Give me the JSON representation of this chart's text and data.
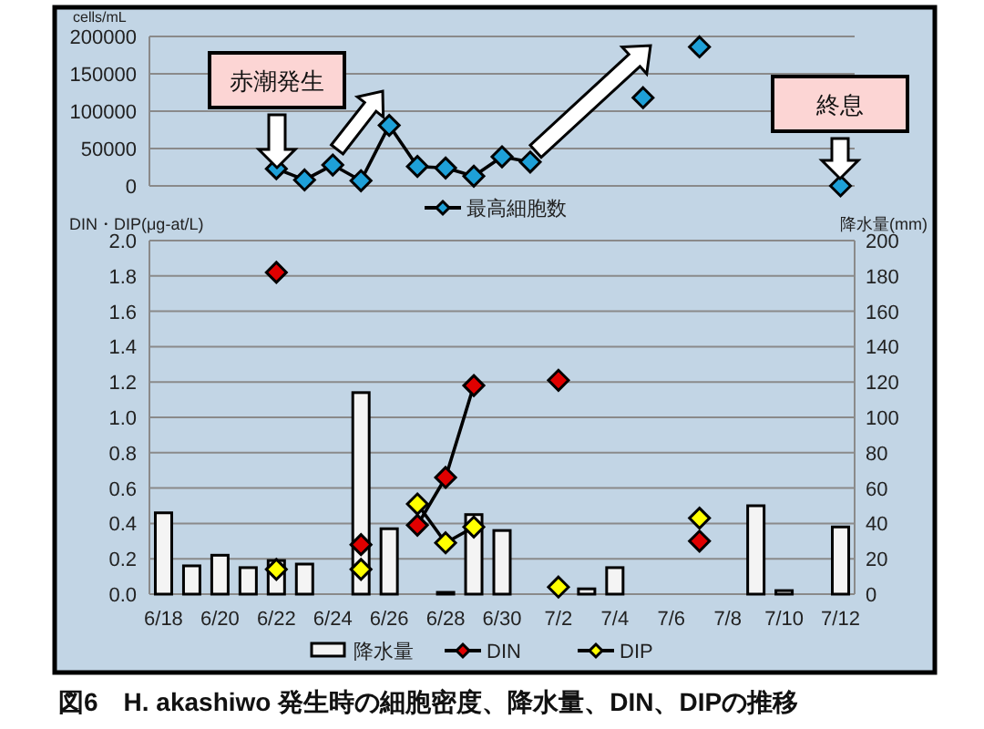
{
  "chart_data": [
    {
      "type": "line",
      "ylabel": "cells/mL",
      "categories": [
        null,
        null,
        null,
        null,
        null,
        null,
        null,
        null,
        null,
        null,
        null,
        null,
        null,
        null,
        null,
        null,
        null,
        null,
        null,
        null,
        null,
        null,
        null,
        null,
        null
      ],
      "tick_labels": "y",
      "ylim": [
        0,
        200000
      ],
      "yticks": [
        0,
        50000,
        100000,
        150000,
        200000
      ],
      "grid": "y",
      "legend": "bottom",
      "marker": "diamond",
      "series": [
        {
          "name": "最高細胞数",
          "color": "#1ea0d8",
          "values": [
            null,
            null,
            null,
            null,
            23000,
            8000,
            28000,
            7000,
            81000,
            26000,
            24000,
            13000,
            39000,
            32000,
            null,
            null,
            null,
            118000,
            null,
            186000,
            null,
            null,
            null,
            null,
            0
          ]
        }
      ],
      "annotations": [
        "赤潮発生",
        "終息"
      ]
    },
    {
      "type": "line",
      "ylabel": "DIN・DIP(μg-at/L)",
      "y2label": "降水量(mm)",
      "categories": [
        "6/18",
        null,
        "6/20",
        null,
        "6/22",
        null,
        "6/24",
        null,
        "6/26",
        null,
        "6/28",
        null,
        "6/30",
        null,
        "7/2",
        null,
        "7/4",
        null,
        "7/6",
        null,
        "7/8",
        null,
        "7/10",
        null,
        "7/12"
      ],
      "ylim": [
        0,
        2
      ],
      "yticks": [
        {
          "value": 0,
          "label": "0.0"
        },
        0.2,
        0.4,
        0.6,
        0.8,
        {
          "value": 1,
          "label": "1.0"
        },
        1.2,
        1.4,
        1.6,
        1.8,
        {
          "value": 2,
          "label": "2.0"
        }
      ],
      "y2lim": [
        0,
        200
      ],
      "y2ticks": [
        0,
        20,
        40,
        60,
        80,
        100,
        120,
        140,
        160,
        180,
        200
      ],
      "grid": "y",
      "legend": "bottom",
      "marker": "diamond",
      "series": [
        {
          "name": "降水量",
          "type": "bar",
          "axis": "y2",
          "color": "#f4f4f4",
          "values": [
            46,
            16,
            22,
            15,
            19,
            17,
            null,
            114,
            37,
            null,
            1,
            45,
            36,
            null,
            null,
            3,
            15,
            null,
            null,
            null,
            null,
            50,
            2,
            null,
            38
          ]
        },
        {
          "name": "DIN",
          "color": "#e00000",
          "values": [
            null,
            null,
            null,
            null,
            1.82,
            null,
            null,
            0.28,
            null,
            0.39,
            0.66,
            1.18,
            null,
            null,
            1.21,
            null,
            null,
            null,
            null,
            0.3,
            null,
            null,
            null,
            null,
            null
          ]
        },
        {
          "name": "DIP",
          "color": "#ffff00",
          "values": [
            null,
            null,
            null,
            null,
            0.14,
            null,
            null,
            0.14,
            null,
            0.51,
            0.29,
            0.38,
            null,
            null,
            0.04,
            null,
            null,
            null,
            null,
            0.43,
            null,
            null,
            null,
            null,
            null
          ]
        }
      ],
      "annotations": [
        "図6　H. akashiwo 発生時の細胞密度、降水量、DIN、DIPの推移"
      ]
    }
  ]
}
